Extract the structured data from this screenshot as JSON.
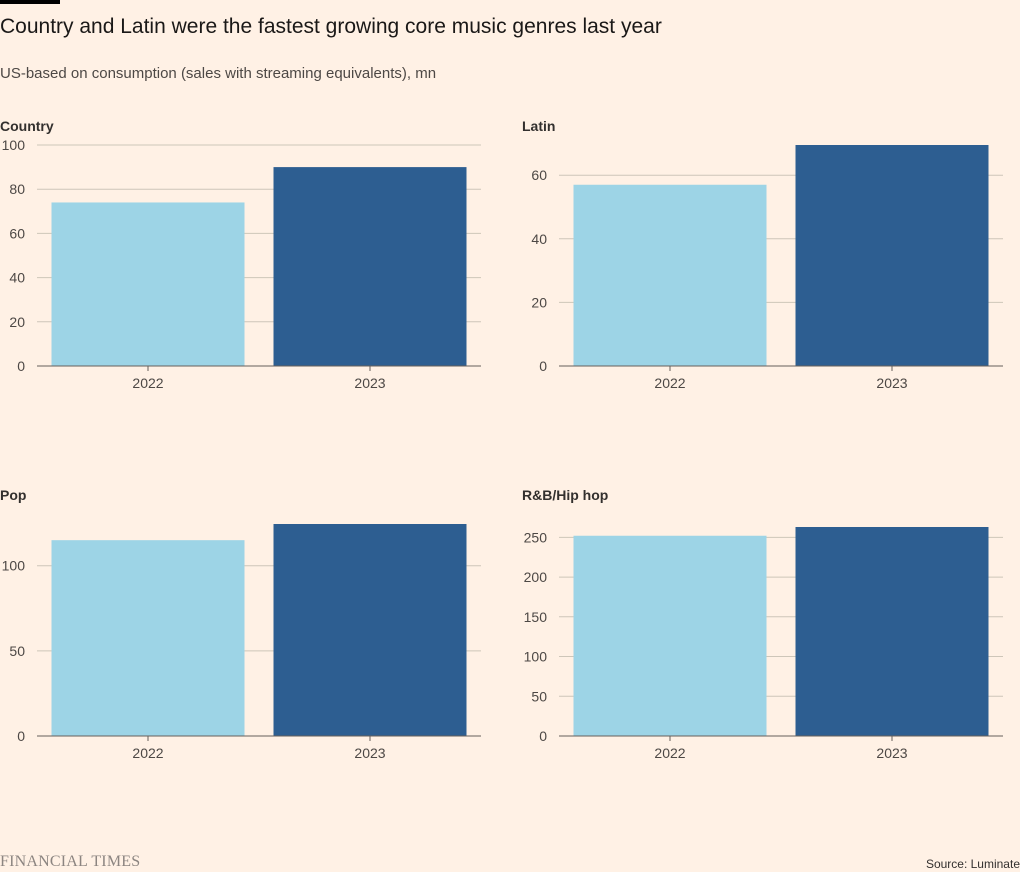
{
  "header": {
    "title": "Country and Latin were the fastest growing core music genres last year",
    "subtitle": "US-based on consumption (sales with streaming equivalents), mn"
  },
  "colors": {
    "series_2022": "#9DD4E6",
    "series_2023": "#2D5E91",
    "gridline": "#CEC6B9",
    "axis": "#66605C",
    "background": "#FFF1E5"
  },
  "chart_data": [
    {
      "type": "bar",
      "title": "Country",
      "categories": [
        "2022",
        "2023"
      ],
      "values": [
        74,
        90
      ],
      "ylim": [
        0,
        100
      ],
      "yticks": [
        0,
        20,
        40,
        60,
        80,
        100
      ],
      "xlabel": "",
      "ylabel": "",
      "grid": true
    },
    {
      "type": "bar",
      "title": "Latin",
      "categories": [
        "2022",
        "2023"
      ],
      "values": [
        57,
        69.5
      ],
      "ylim": [
        0,
        69.5
      ],
      "yticks": [
        0,
        20,
        40,
        60
      ],
      "xlabel": "",
      "ylabel": "",
      "grid": true
    },
    {
      "type": "bar",
      "title": "Pop",
      "categories": [
        "2022",
        "2023"
      ],
      "values": [
        115,
        124.5
      ],
      "ylim": [
        0,
        124.5
      ],
      "yticks": [
        0,
        50,
        100
      ],
      "xlabel": "",
      "ylabel": "",
      "grid": true
    },
    {
      "type": "bar",
      "title": "R&B/Hip hop",
      "categories": [
        "2022",
        "2023"
      ],
      "values": [
        252,
        263
      ],
      "ylim": [
        0,
        263
      ],
      "yticks": [
        0,
        50,
        100,
        150,
        200,
        250
      ],
      "xlabel": "",
      "ylabel": "",
      "grid": true
    }
  ],
  "footer": {
    "logo": "FINANCIAL TIMES",
    "source": "Source: Luminate"
  }
}
